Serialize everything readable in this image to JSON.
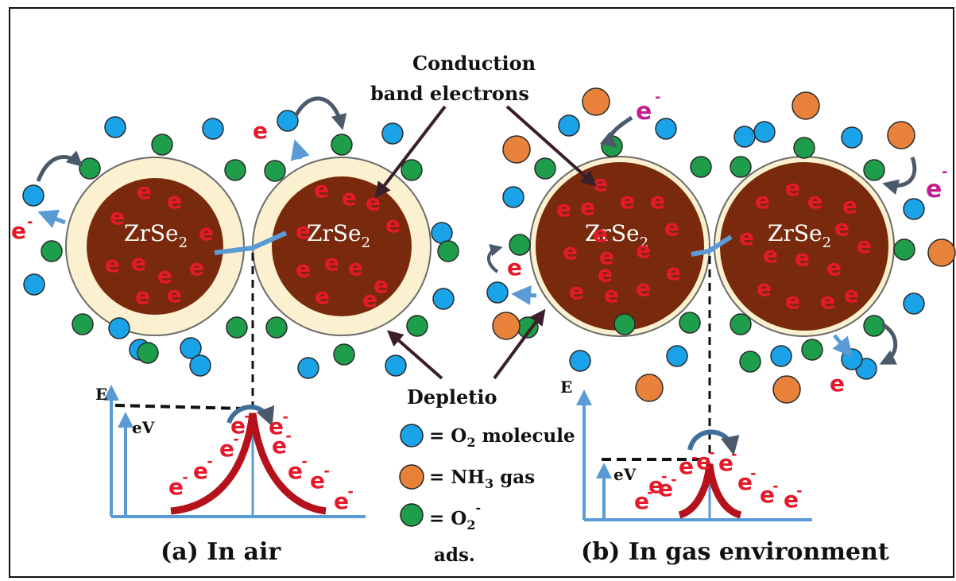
{
  "labels": {
    "conduction_line1": "Conduction",
    "conduction_line2": "band electrons",
    "depletion": "Depletio",
    "core_left": "ZrSe",
    "core_right": "ZrSe",
    "core_sub": "2",
    "electron": "e",
    "electron_sup": "-"
  },
  "legend": {
    "o2_molecule": "= O",
    "o2_molecule_sub": "2",
    "o2_molecule_rest": " molecule",
    "nh3": "= NH",
    "nh3_sub": "3",
    "nh3_rest": " gas",
    "o2_ads": "= O",
    "o2_ads_sub": "2",
    "o2_ads_sup": "-",
    "o2_ads_line2": "ads."
  },
  "energy_left": {
    "axis": "E",
    "barrier": "eV"
  },
  "energy_right": {
    "axis": "E",
    "barrier": "eV"
  },
  "captions": {
    "left": "(a) In air",
    "right": "(b) In gas environment"
  },
  "colors": {
    "o2_molecule": "#1aa3e8",
    "nh3_gas": "#e8823a",
    "o2_adsorbed": "#1e9e4a",
    "core": "#7a2a0c",
    "depletion_shell": "#fbf0cf",
    "electron": "#e6192b",
    "band_curve": "#b5121b",
    "axis": "#5b9bd5"
  }
}
